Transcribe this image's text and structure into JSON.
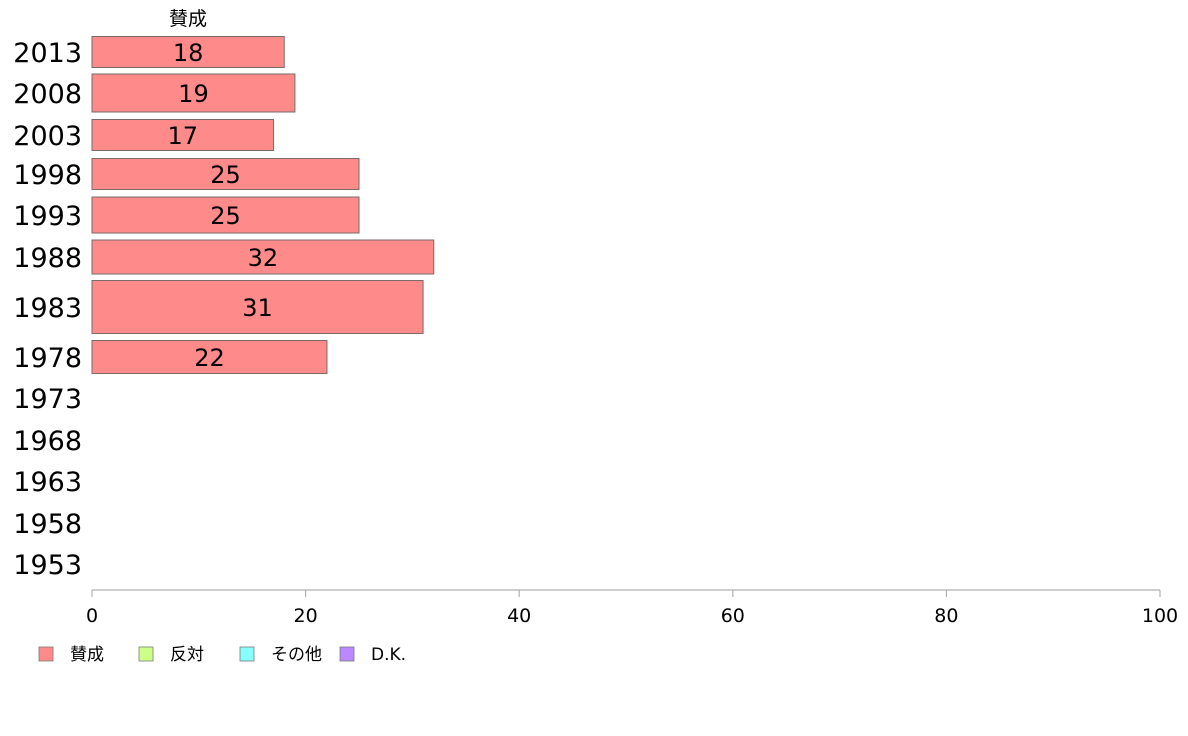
{
  "chart_data": {
    "type": "bar",
    "orientation": "horizontal",
    "categories": [
      "2013",
      "2008",
      "2003",
      "1998",
      "1993",
      "1988",
      "1983",
      "1978",
      "1973",
      "1968",
      "1963",
      "1958",
      "1953"
    ],
    "series": [
      {
        "name": "賛成",
        "color": "#ff8a8a",
        "values": [
          18,
          19,
          17,
          25,
          25,
          32,
          31,
          22,
          null,
          null,
          null,
          null,
          null
        ],
        "labels": [
          "18",
          "19",
          "17",
          "25",
          "25",
          "32",
          "31",
          "22",
          "",
          "",
          "",
          "",
          ""
        ]
      }
    ],
    "column_header": "賛成",
    "xlim": [
      0,
      100
    ],
    "x_ticks": [
      "0",
      "20",
      "40",
      "60",
      "80",
      "100"
    ],
    "grid": false,
    "legend": {
      "placement": "bottom-left",
      "items": [
        {
          "label": "賛成",
          "color": "#ff8a8a"
        },
        {
          "label": "反対",
          "color": "#ccff88"
        },
        {
          "label": "その他",
          "color": "#88ffff"
        },
        {
          "label": "D.K.",
          "color": "#bb88ff"
        }
      ]
    },
    "title": "",
    "xlabel": "",
    "ylabel": ""
  }
}
